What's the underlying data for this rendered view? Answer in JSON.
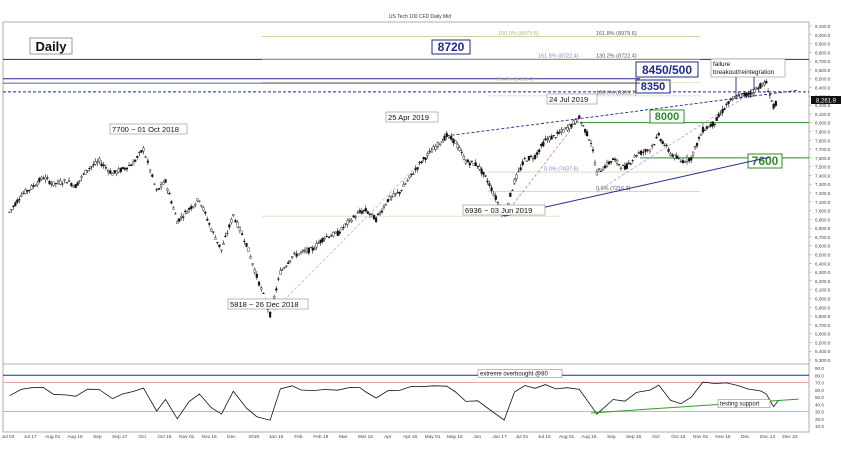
{
  "chart_data": {
    "type": "candlestick",
    "title": "US Tech 100 CFD Daily Mid",
    "timeframe_label": "Daily",
    "price_axis": {
      "ylim": [
        5300,
        9100
      ],
      "ticks": [
        "9,100.0",
        "9,000.0",
        "8,900.0",
        "8,800.0",
        "8,700.0",
        "8,600.0",
        "8,500.0",
        "8,400.0",
        "8,300.0",
        "8,200.0",
        "8,100.0",
        "8,000.0",
        "7,900.0",
        "7,800.0",
        "7,700.0",
        "7,600.0",
        "7,500.0",
        "7,400.0",
        "7,300.0",
        "7,200.0",
        "7,100.0",
        "7,000.0",
        "6,900.0",
        "6,800.0",
        "6,700.0",
        "6,600.0",
        "6,500.0",
        "6,400.0",
        "6,300.0",
        "6,200.0",
        "6,100.0",
        "6,000.0",
        "5,900.0",
        "5,800.0",
        "5,700.0",
        "5,600.0",
        "5,500.0",
        "5,400.0",
        "5,300.0"
      ],
      "last_price_label": "8,261.9"
    },
    "x_axis_ticks": [
      "Jul 03",
      "Jul 17",
      "Aug 01",
      "Aug 16",
      "Sep",
      "Sep 17",
      "Oct",
      "Oct 16",
      "Nov 01",
      "Nov 16",
      "Dec",
      "2019",
      "Jan 16",
      "Feb",
      "Feb 18",
      "Mar",
      "Mar 16",
      "Apr",
      "Apr 16",
      "May 01",
      "May 16",
      "Jun",
      "Jun 17",
      "Jul 01",
      "Jul 16",
      "Aug 01",
      "Aug 16",
      "Sep",
      "Sep 16",
      "Oct",
      "Oct 16",
      "Nov 01",
      "Nov 16",
      "Dec",
      "Dec 12",
      "Dec 22"
    ],
    "key_levels": [
      {
        "label": "8720",
        "value": 8720,
        "color": "#1f2a8a"
      },
      {
        "label": "8450/500",
        "value": 8500,
        "color": "#1f2a8a"
      },
      {
        "label": "8350",
        "value": 8350,
        "color": "#1f2a8a"
      },
      {
        "label": "8000",
        "value": 8000,
        "color": "#2e8b2e"
      },
      {
        "label": "7600",
        "value": 7600,
        "color": "#2e8b2e"
      }
    ],
    "fib_levels": [
      {
        "label": "100.0% (8979.6)",
        "value": 8980
      },
      {
        "label": "161.8% (8979.6)",
        "value": 8980
      },
      {
        "label": "161.8% (8722.4)",
        "value": 8722
      },
      {
        "label": "130.2% (8722.4)",
        "value": 8722
      },
      {
        "label": "76.4% (8460.4)",
        "value": 8460
      },
      {
        "label": "100.0% (8305.7)",
        "value": 8305
      },
      {
        "label": "0.0% (7437.6)",
        "value": 7438
      },
      {
        "label": "0.0% (7216.3)",
        "value": 7216
      },
      {
        "label": "0.0% (6936.6)",
        "value": 6937
      }
    ],
    "annotations": [
      {
        "text": "7700 ~ 01 Oct 2018",
        "price": 7700
      },
      {
        "text": "5818 ~ 26 Dec 2018",
        "price": 5818
      },
      {
        "text": "25 Apr 2019",
        "price": 7850
      },
      {
        "text": "6936 ~ 03 Jun 2019",
        "price": 6936
      },
      {
        "text": "24 Jul 2019",
        "price": 8050
      },
      {
        "text": "failure breakout/reintegration",
        "price": 8450
      }
    ],
    "price_series": [
      {
        "date": "2018-07-02",
        "close": 6980
      },
      {
        "date": "2018-07-10",
        "close": 7180
      },
      {
        "date": "2018-07-17",
        "close": 7260
      },
      {
        "date": "2018-07-25",
        "close": 7380
      },
      {
        "date": "2018-08-01",
        "close": 7300
      },
      {
        "date": "2018-08-10",
        "close": 7340
      },
      {
        "date": "2018-08-16",
        "close": 7280
      },
      {
        "date": "2018-08-24",
        "close": 7470
      },
      {
        "date": "2018-09-01",
        "close": 7560
      },
      {
        "date": "2018-09-10",
        "close": 7420
      },
      {
        "date": "2018-09-17",
        "close": 7470
      },
      {
        "date": "2018-09-24",
        "close": 7540
      },
      {
        "date": "2018-10-01",
        "close": 7700
      },
      {
        "date": "2018-10-10",
        "close": 7220
      },
      {
        "date": "2018-10-16",
        "close": 7330
      },
      {
        "date": "2018-10-24",
        "close": 6880
      },
      {
        "date": "2018-11-01",
        "close": 7020
      },
      {
        "date": "2018-11-08",
        "close": 7130
      },
      {
        "date": "2018-11-16",
        "close": 6790
      },
      {
        "date": "2018-11-23",
        "close": 6550
      },
      {
        "date": "2018-12-01",
        "close": 6950
      },
      {
        "date": "2018-12-10",
        "close": 6620
      },
      {
        "date": "2018-12-17",
        "close": 6250
      },
      {
        "date": "2018-12-26",
        "close": 5818
      },
      {
        "date": "2019-01-02",
        "close": 6300
      },
      {
        "date": "2019-01-10",
        "close": 6480
      },
      {
        "date": "2019-01-16",
        "close": 6520
      },
      {
        "date": "2019-01-24",
        "close": 6560
      },
      {
        "date": "2019-02-01",
        "close": 6700
      },
      {
        "date": "2019-02-10",
        "close": 6740
      },
      {
        "date": "2019-02-18",
        "close": 6880
      },
      {
        "date": "2019-02-25",
        "close": 6980
      },
      {
        "date": "2019-03-01",
        "close": 7000
      },
      {
        "date": "2019-03-08",
        "close": 6900
      },
      {
        "date": "2019-03-16",
        "close": 7120
      },
      {
        "date": "2019-03-24",
        "close": 7210
      },
      {
        "date": "2019-04-01",
        "close": 7400
      },
      {
        "date": "2019-04-08",
        "close": 7560
      },
      {
        "date": "2019-04-16",
        "close": 7700
      },
      {
        "date": "2019-04-25",
        "close": 7850
      },
      {
        "date": "2019-05-01",
        "close": 7780
      },
      {
        "date": "2019-05-08",
        "close": 7560
      },
      {
        "date": "2019-05-16",
        "close": 7520
      },
      {
        "date": "2019-05-24",
        "close": 7300
      },
      {
        "date": "2019-06-03",
        "close": 6936
      },
      {
        "date": "2019-06-10",
        "close": 7330
      },
      {
        "date": "2019-06-17",
        "close": 7580
      },
      {
        "date": "2019-06-24",
        "close": 7620
      },
      {
        "date": "2019-07-01",
        "close": 7800
      },
      {
        "date": "2019-07-08",
        "close": 7850
      },
      {
        "date": "2019-07-16",
        "close": 7940
      },
      {
        "date": "2019-07-24",
        "close": 8050
      },
      {
        "date": "2019-08-01",
        "close": 7780
      },
      {
        "date": "2019-08-05",
        "close": 7430
      },
      {
        "date": "2019-08-16",
        "close": 7580
      },
      {
        "date": "2019-08-24",
        "close": 7480
      },
      {
        "date": "2019-09-01",
        "close": 7640
      },
      {
        "date": "2019-09-10",
        "close": 7700
      },
      {
        "date": "2019-09-16",
        "close": 7850
      },
      {
        "date": "2019-09-24",
        "close": 7650
      },
      {
        "date": "2019-10-01",
        "close": 7560
      },
      {
        "date": "2019-10-08",
        "close": 7600
      },
      {
        "date": "2019-10-16",
        "close": 7920
      },
      {
        "date": "2019-10-24",
        "close": 8000
      },
      {
        "date": "2019-11-01",
        "close": 8200
      },
      {
        "date": "2019-11-08",
        "close": 8300
      },
      {
        "date": "2019-11-16",
        "close": 8330
      },
      {
        "date": "2019-11-24",
        "close": 8420
      },
      {
        "date": "2019-11-28",
        "close": 8450
      },
      {
        "date": "2019-12-03",
        "close": 8180
      },
      {
        "date": "2019-12-06",
        "close": 8262
      }
    ],
    "indicator": {
      "annotation_top": "extreme overbought @80",
      "annotation_support": "testing support",
      "ylim": [
        10,
        90
      ],
      "ticks": [
        "90.0",
        "80.0",
        "70.0",
        "60.0",
        "50.0",
        "40.0",
        "30.0",
        "20.0",
        "10.0"
      ],
      "overbought": 80,
      "oversold": 30
    }
  }
}
